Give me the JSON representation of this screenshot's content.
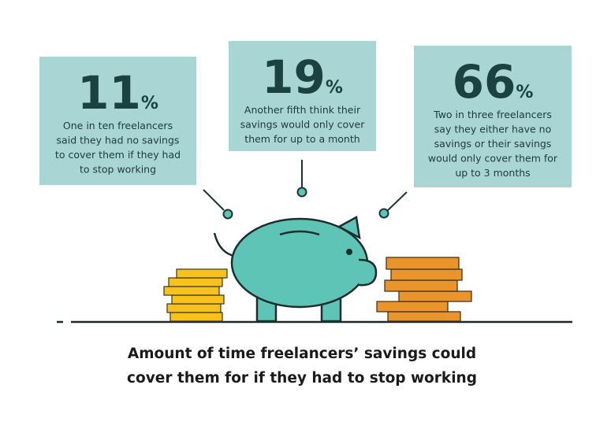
{
  "stats": [
    {
      "number": "11",
      "unit": "%",
      "lines": [
        "One in ten freelancers",
        "said they had no savings",
        "to cover them if they had",
        "to stop working"
      ]
    },
    {
      "number": "19",
      "unit": "%",
      "lines": [
        "Another fifth think their",
        "savings would only cover",
        "them for up to a month"
      ]
    },
    {
      "number": "66",
      "unit": "%",
      "lines": [
        "Two in three freelancers",
        "say they either have no",
        "savings or their savings",
        "would only cover them for",
        "up to 3 months"
      ]
    }
  ],
  "caption": [
    "Amount of time freelancers’ savings could",
    "cover them for if they had to stop working"
  ]
}
